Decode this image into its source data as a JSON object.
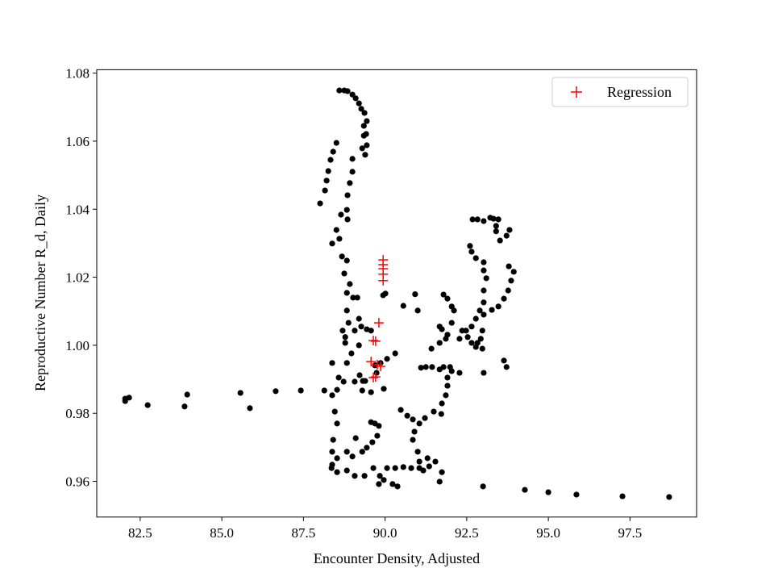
{
  "chart_data": {
    "type": "scatter",
    "title": "",
    "xlabel": "Encounter Density, Adjusted",
    "ylabel": "Reproductive Number R_d, Daily",
    "xlim": [
      81.17,
      99.54
    ],
    "ylim": [
      0.9495,
      1.081
    ],
    "xticks": [
      "82.5",
      "85.0",
      "87.5",
      "90.0",
      "92.5",
      "95.0",
      "97.5"
    ],
    "xtick_values": [
      82.5,
      85.0,
      87.5,
      90.0,
      92.5,
      95.0,
      97.5
    ],
    "yticks": [
      "0.96",
      "0.98",
      "1.00",
      "1.02",
      "1.04",
      "1.06",
      "1.08"
    ],
    "ytick_values": [
      0.96,
      0.98,
      1.0,
      1.02,
      1.04,
      1.06,
      1.08
    ],
    "grid": false,
    "legend_position": "top-right",
    "series": [
      {
        "marker": "circle",
        "color": "#000000",
        "points": [
          [
            82.04,
            0.9836
          ],
          [
            82.04,
            0.9843
          ],
          [
            82.16,
            0.9846
          ],
          [
            82.73,
            0.9824
          ],
          [
            83.86,
            0.982
          ],
          [
            83.94,
            0.9855
          ],
          [
            85.57,
            0.986
          ],
          [
            85.86,
            0.9815
          ],
          [
            86.65,
            0.9865
          ],
          [
            87.42,
            0.9867
          ],
          [
            88.14,
            0.9867
          ],
          [
            88.53,
            0.9869
          ],
          [
            89.32,
            0.9895
          ],
          [
            93.0,
            0.9585
          ],
          [
            94.28,
            0.9575
          ],
          [
            95.0,
            0.9568
          ],
          [
            95.86,
            0.9561
          ],
          [
            97.27,
            0.9556
          ],
          [
            98.7,
            0.9554
          ],
          [
            88.01,
            1.0417
          ],
          [
            88.16,
            1.0455
          ],
          [
            88.21,
            1.0484
          ],
          [
            88.26,
            1.0512
          ],
          [
            88.33,
            1.0545
          ],
          [
            88.41,
            1.0569
          ],
          [
            88.51,
            1.0595
          ],
          [
            88.6,
            1.0749
          ],
          [
            88.75,
            1.0749
          ],
          [
            88.85,
            1.0747
          ],
          [
            89.0,
            1.0737
          ],
          [
            89.1,
            1.0726
          ],
          [
            89.2,
            1.0711
          ],
          [
            89.27,
            1.0695
          ],
          [
            89.37,
            1.0683
          ],
          [
            89.44,
            1.0659
          ],
          [
            89.35,
            1.0645
          ],
          [
            89.42,
            1.0621
          ],
          [
            89.35,
            1.0616
          ],
          [
            89.44,
            1.0588
          ],
          [
            89.3,
            1.0579
          ],
          [
            89.39,
            1.056
          ],
          [
            89.0,
            1.0548
          ],
          [
            89.0,
            1.051
          ],
          [
            88.92,
            1.0477
          ],
          [
            88.85,
            1.0441
          ],
          [
            88.83,
            1.0398
          ],
          [
            88.85,
            1.037
          ],
          [
            88.65,
            1.0384
          ],
          [
            88.51,
            1.0339
          ],
          [
            88.38,
            1.0299
          ],
          [
            88.6,
            1.0313
          ],
          [
            88.68,
            1.0261
          ],
          [
            88.83,
            1.0249
          ],
          [
            88.75,
            1.0211
          ],
          [
            88.92,
            1.018
          ],
          [
            88.83,
            1.0154
          ],
          [
            89.02,
            1.014
          ],
          [
            89.15,
            1.014
          ],
          [
            88.83,
            1.0102
          ],
          [
            89.2,
            1.0078
          ],
          [
            88.88,
            1.0066
          ],
          [
            88.7,
            1.0043
          ],
          [
            88.78,
            1.0024
          ],
          [
            89.07,
            1.0043
          ],
          [
            89.27,
            1.0055
          ],
          [
            89.44,
            1.0047
          ],
          [
            89.57,
            1.0043
          ],
          [
            88.78,
            1.0007
          ],
          [
            89.2,
            1.0
          ],
          [
            88.97,
            0.9976
          ],
          [
            88.83,
            0.9948
          ],
          [
            88.38,
            0.9948
          ],
          [
            88.58,
            0.9905
          ],
          [
            88.73,
            0.9893
          ],
          [
            89.22,
            0.9912
          ],
          [
            89.39,
            0.9895
          ],
          [
            89.57,
            0.9862
          ],
          [
            89.3,
            0.9867
          ],
          [
            89.07,
            0.9893
          ],
          [
            89.96,
            0.9872
          ],
          [
            89.74,
            0.9919
          ],
          [
            89.69,
            0.9941
          ],
          [
            89.86,
            0.9948
          ],
          [
            90.06,
            0.996
          ],
          [
            90.31,
            0.9976
          ],
          [
            88.38,
            0.9853
          ],
          [
            88.46,
            0.9805
          ],
          [
            88.53,
            0.977
          ],
          [
            88.41,
            0.9722
          ],
          [
            88.38,
            0.9687
          ],
          [
            88.38,
            0.9649
          ],
          [
            88.36,
            0.9639
          ],
          [
            88.53,
            0.9627
          ],
          [
            88.83,
            0.9632
          ],
          [
            89.07,
            0.9616
          ],
          [
            89.37,
            0.9616
          ],
          [
            89.64,
            0.9639
          ],
          [
            89.84,
            0.9616
          ],
          [
            89.81,
            0.9592
          ],
          [
            89.96,
            0.9604
          ],
          [
            90.23,
            0.9592
          ],
          [
            90.38,
            0.9585
          ],
          [
            90.06,
            0.9639
          ],
          [
            90.31,
            0.9639
          ],
          [
            90.56,
            0.9642
          ],
          [
            90.8,
            0.9639
          ],
          [
            91.05,
            0.9639
          ],
          [
            91.17,
            0.9632
          ],
          [
            91.35,
            0.9644
          ],
          [
            91.54,
            0.9658
          ],
          [
            91.74,
            0.9627
          ],
          [
            91.67,
            0.9599
          ],
          [
            89.57,
            0.9774
          ],
          [
            89.69,
            0.977
          ],
          [
            89.81,
            0.9763
          ],
          [
            89.76,
            0.9734
          ],
          [
            89.61,
            0.9715
          ],
          [
            89.44,
            0.9699
          ],
          [
            89.3,
            0.9687
          ],
          [
            89.0,
            0.9673
          ],
          [
            88.83,
            0.9687
          ],
          [
            88.53,
            0.9668
          ],
          [
            89.1,
            0.9727
          ],
          [
            89.94,
            1.0147
          ],
          [
            90.01,
            1.0152
          ],
          [
            90.56,
            1.0116
          ],
          [
            90.92,
            1.015
          ],
          [
            91.0,
            1.0102
          ],
          [
            90.48,
            0.981
          ],
          [
            90.68,
            0.9793
          ],
          [
            90.85,
            0.9782
          ],
          [
            91.05,
            0.977
          ],
          [
            91.22,
            0.9786
          ],
          [
            90.9,
            0.9746
          ],
          [
            90.85,
            0.9722
          ],
          [
            91.0,
            0.9687
          ],
          [
            91.05,
            0.9658
          ],
          [
            91.3,
            0.9668
          ],
          [
            91.49,
            0.9805
          ],
          [
            91.72,
            0.9798
          ],
          [
            91.74,
            0.9829
          ],
          [
            91.86,
            0.9853
          ],
          [
            91.91,
            0.9881
          ],
          [
            91.91,
            0.9905
          ],
          [
            91.99,
            0.9936
          ],
          [
            92.04,
            0.9924
          ],
          [
            92.28,
            0.9919
          ],
          [
            91.1,
            0.9934
          ],
          [
            91.25,
            0.9936
          ],
          [
            91.44,
            0.9936
          ],
          [
            91.67,
            0.9929
          ],
          [
            91.79,
            0.9936
          ],
          [
            91.42,
            0.999
          ],
          [
            91.67,
            1.0007
          ],
          [
            91.86,
            1.0019
          ],
          [
            91.91,
            1.0031
          ],
          [
            91.74,
            1.0047
          ],
          [
            91.67,
            1.0055
          ],
          [
            92.04,
            1.0066
          ],
          [
            92.11,
            1.0102
          ],
          [
            92.04,
            1.0114
          ],
          [
            91.91,
            1.0137
          ],
          [
            91.79,
            1.0149
          ],
          [
            92.36,
            1.0043
          ],
          [
            92.28,
            1.0019
          ],
          [
            92.48,
            1.0043
          ],
          [
            92.65,
            1.0055
          ],
          [
            92.78,
            1.0078
          ],
          [
            92.9,
            1.0102
          ],
          [
            93.02,
            1.0126
          ],
          [
            93.02,
            1.0161
          ],
          [
            93.1,
            1.0197
          ],
          [
            93.02,
            1.022
          ],
          [
            93.02,
            1.0244
          ],
          [
            92.78,
            1.0256
          ],
          [
            92.65,
            1.0275
          ],
          [
            92.6,
            1.0292
          ],
          [
            92.68,
            1.037
          ],
          [
            92.83,
            1.037
          ],
          [
            93.02,
            1.0365
          ],
          [
            93.22,
            1.0375
          ],
          [
            93.32,
            1.0372
          ],
          [
            93.47,
            1.037
          ],
          [
            93.4,
            1.0351
          ],
          [
            93.4,
            1.0335
          ],
          [
            93.52,
            1.0308
          ],
          [
            93.72,
            1.0322
          ],
          [
            93.81,
            1.0339
          ],
          [
            93.79,
            1.0232
          ],
          [
            93.94,
            1.0216
          ],
          [
            93.86,
            1.019
          ],
          [
            93.77,
            1.0161
          ],
          [
            93.64,
            1.0137
          ],
          [
            93.47,
            1.0114
          ],
          [
            93.27,
            1.0104
          ],
          [
            93.02,
            1.009
          ],
          [
            92.93,
            1.0019
          ],
          [
            92.98,
            0.999
          ],
          [
            93.02,
            0.9919
          ],
          [
            93.64,
            0.9955
          ],
          [
            93.72,
            0.9936
          ],
          [
            92.53,
            1.0024
          ],
          [
            92.65,
            1.0007
          ],
          [
            92.83,
            1.0007
          ],
          [
            92.98,
            1.0043
          ],
          [
            92.78,
            0.9995
          ]
        ]
      },
      {
        "name": "Regression",
        "marker": "plus",
        "color": "#ff0000",
        "points": [
          [
            89.94,
            1.0251
          ],
          [
            89.94,
            1.0237
          ],
          [
            89.94,
            1.0225
          ],
          [
            89.94,
            1.0209
          ],
          [
            89.94,
            1.019
          ],
          [
            89.81,
            1.0066
          ],
          [
            89.64,
            1.0014
          ],
          [
            89.71,
            1.0012
          ],
          [
            89.57,
            0.9952
          ],
          [
            89.76,
            0.9943
          ],
          [
            89.86,
            0.9938
          ],
          [
            89.71,
            0.9907
          ],
          [
            89.64,
            0.9905
          ]
        ]
      }
    ]
  }
}
